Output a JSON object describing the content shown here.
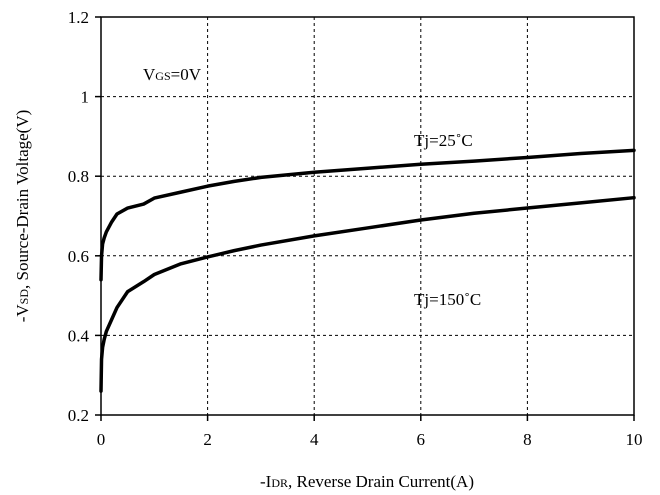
{
  "chart_data": {
    "type": "line",
    "xlabel": "-IDR, Reverse Drain Current(A)",
    "ylabel": "-VSD, Source-Drain Voltage(V)",
    "xlim": [
      0,
      10
    ],
    "ylim": [
      0.2,
      1.2
    ],
    "x_ticks": [
      "0",
      "2",
      "4",
      "6",
      "8",
      "10"
    ],
    "y_ticks": [
      "0.2",
      "0.4",
      "0.6",
      "0.8",
      "1",
      "1.2"
    ],
    "grid": true,
    "grid_style": "dashed",
    "annotations": [
      "VGS=0V",
      "Tj=25°C",
      "Tj=150°C"
    ],
    "series": [
      {
        "name": "Tj=25°C",
        "color": "#000000",
        "x": [
          0.0,
          0.01,
          0.03,
          0.06,
          0.1,
          0.2,
          0.3,
          0.5,
          0.8,
          1.0,
          1.5,
          2.0,
          2.5,
          3.0,
          4.0,
          5.0,
          6.0,
          7.0,
          8.0,
          9.0,
          10.0
        ],
        "y": [
          0.54,
          0.6,
          0.63,
          0.645,
          0.66,
          0.685,
          0.705,
          0.72,
          0.73,
          0.745,
          0.76,
          0.775,
          0.787,
          0.797,
          0.81,
          0.82,
          0.83,
          0.838,
          0.847,
          0.857,
          0.865
        ]
      },
      {
        "name": "Tj=150°C",
        "color": "#000000",
        "x": [
          0.0,
          0.01,
          0.03,
          0.06,
          0.1,
          0.2,
          0.3,
          0.5,
          0.8,
          1.0,
          1.5,
          2.0,
          2.5,
          3.0,
          4.0,
          5.0,
          6.0,
          7.0,
          8.0,
          9.0,
          10.0
        ],
        "y": [
          0.26,
          0.34,
          0.37,
          0.39,
          0.41,
          0.44,
          0.47,
          0.51,
          0.535,
          0.553,
          0.58,
          0.597,
          0.613,
          0.627,
          0.65,
          0.67,
          0.69,
          0.707,
          0.72,
          0.733,
          0.746
        ]
      }
    ]
  }
}
